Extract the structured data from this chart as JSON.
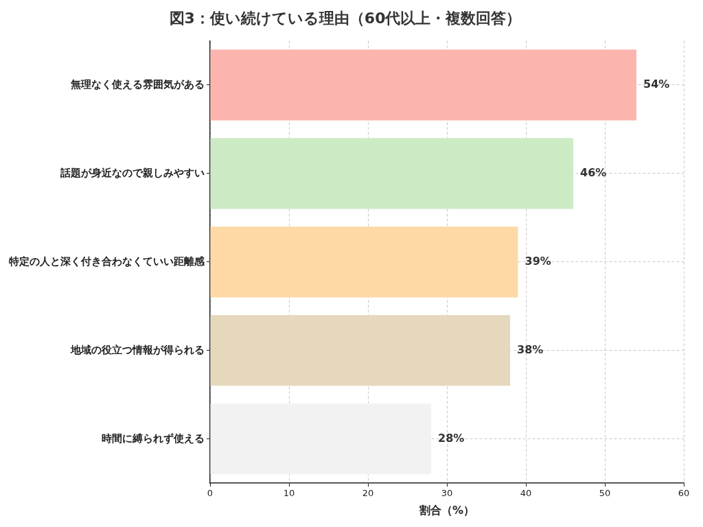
{
  "chart_data": {
    "type": "bar",
    "orientation": "horizontal",
    "title": "図3：使い続けている理由（60代以上・複数回答）",
    "xlabel": "割合（%）",
    "categories": [
      "無理なく使える雰囲気がある",
      "話題が身近なので親しみやすい",
      "特定の人と深く付き合わなくていい距離感",
      "地域の役立つ情報が得られる",
      "時間に縛られず使える"
    ],
    "values": [
      54,
      46,
      39,
      38,
      28
    ],
    "colors": [
      "#fbb4ae",
      "#ccebc5",
      "#fed9a6",
      "#e5d8bd",
      "#f2f2f2"
    ],
    "value_labels": [
      "54%",
      "46%",
      "39%",
      "38%",
      "28%"
    ],
    "xlim": [
      0,
      60
    ],
    "xticks": [
      0,
      10,
      20,
      30,
      40,
      50,
      60
    ],
    "grid": true,
    "legend": false
  }
}
